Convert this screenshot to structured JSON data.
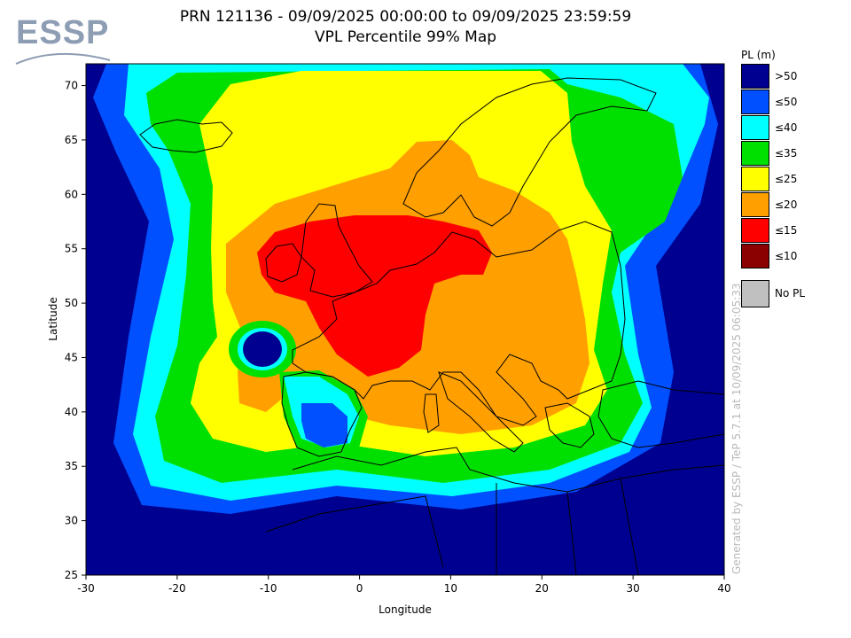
{
  "logo": {
    "text": "ESSP"
  },
  "title": {
    "line1": "PRN 121136 - 09/09/2025 00:00:00 to 09/09/2025 23:59:59",
    "line2": "VPL Percentile 99% Map"
  },
  "axes": {
    "xlabel": "Longitude",
    "ylabel": "Latitude",
    "x_ticks": [
      -30,
      -20,
      -10,
      0,
      10,
      20,
      30,
      40
    ],
    "y_ticks": [
      25,
      30,
      35,
      40,
      45,
      50,
      55,
      60,
      65,
      70
    ],
    "xlim": [
      -30,
      40
    ],
    "ylim": [
      25,
      72
    ]
  },
  "legend": {
    "title": "PL (m)",
    "items": [
      {
        "label": ">50",
        "color": "#000090"
      },
      {
        "label": "≤50",
        "color": "#0050ff"
      },
      {
        "label": "≤40",
        "color": "#00ffff"
      },
      {
        "label": "≤35",
        "color": "#00e000"
      },
      {
        "label": "≤25",
        "color": "#ffff00"
      },
      {
        "label": "≤20",
        "color": "#ffa000"
      },
      {
        "label": "≤15",
        "color": "#ff0000"
      },
      {
        "label": "≤10",
        "color": "#8b0000"
      }
    ],
    "no_pl": {
      "label": "No PL",
      "color": "#c0c0c0"
    }
  },
  "watermark": "Generated by ESSP / TeP 5.7.1 at 10/09/2025 06:05:33"
}
